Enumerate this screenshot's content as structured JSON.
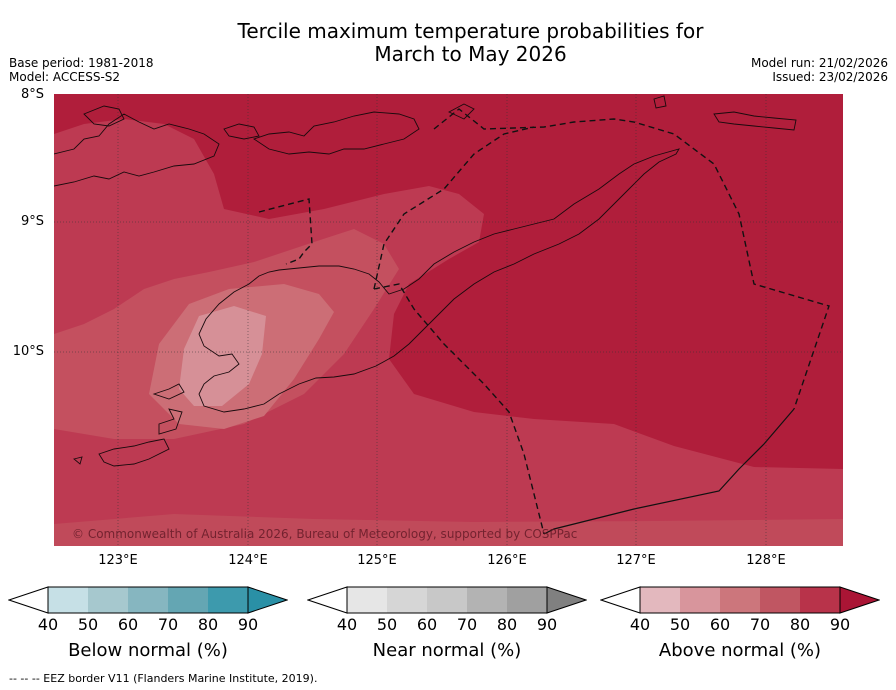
{
  "header": {
    "title_line1": "Tercile maximum temperature probabilities for",
    "title_line2": "March to May 2026",
    "base_period": "Base period: 1981-2018",
    "model": "Model: ACCESS-S2",
    "model_run": "Model run: 21/02/2026",
    "issued": "Issued: 23/02/2026"
  },
  "map": {
    "lat_labels": [
      "8°S",
      "9°S",
      "10°S"
    ],
    "lon_labels": [
      "123°E",
      "124°E",
      "125°E",
      "126°E",
      "127°E",
      "128°E"
    ],
    "copyright": "© Commonwealth of Australia 2026, Bureau of Meteorology, supported by COSPPac",
    "colors": {
      "above_90": "#b01e3b",
      "above_80": "#bb3850",
      "above_70": "#c4505f",
      "above_60": "#cc6e76",
      "above_50": "#d69097"
    }
  },
  "colorbars": [
    {
      "label": "Below normal (%)",
      "ticks": [
        "40",
        "50",
        "60",
        "70",
        "80",
        "90"
      ],
      "colors": [
        "#ffffff",
        "#c6e0e6",
        "#a6c8ce",
        "#86b6c0",
        "#64a6b3",
        "#3d9aad",
        "#2a90a6"
      ]
    },
    {
      "label": "Near normal (%)",
      "ticks": [
        "40",
        "50",
        "60",
        "70",
        "80",
        "90"
      ],
      "colors": [
        "#ffffff",
        "#e6e6e6",
        "#d6d6d6",
        "#c8c8c8",
        "#b3b3b3",
        "#a0a0a0",
        "#808080"
      ]
    },
    {
      "label": "Above normal (%)",
      "ticks": [
        "40",
        "50",
        "60",
        "70",
        "80",
        "90"
      ],
      "colors": [
        "#ffffff",
        "#e3b8be",
        "#d8959c",
        "#cc767c",
        "#c05662",
        "#b8334a",
        "#aa1535"
      ]
    }
  ],
  "footer": {
    "eez_legend": "--  --  -- EEZ border V11 (Flanders Marine Institute, 2019)."
  }
}
